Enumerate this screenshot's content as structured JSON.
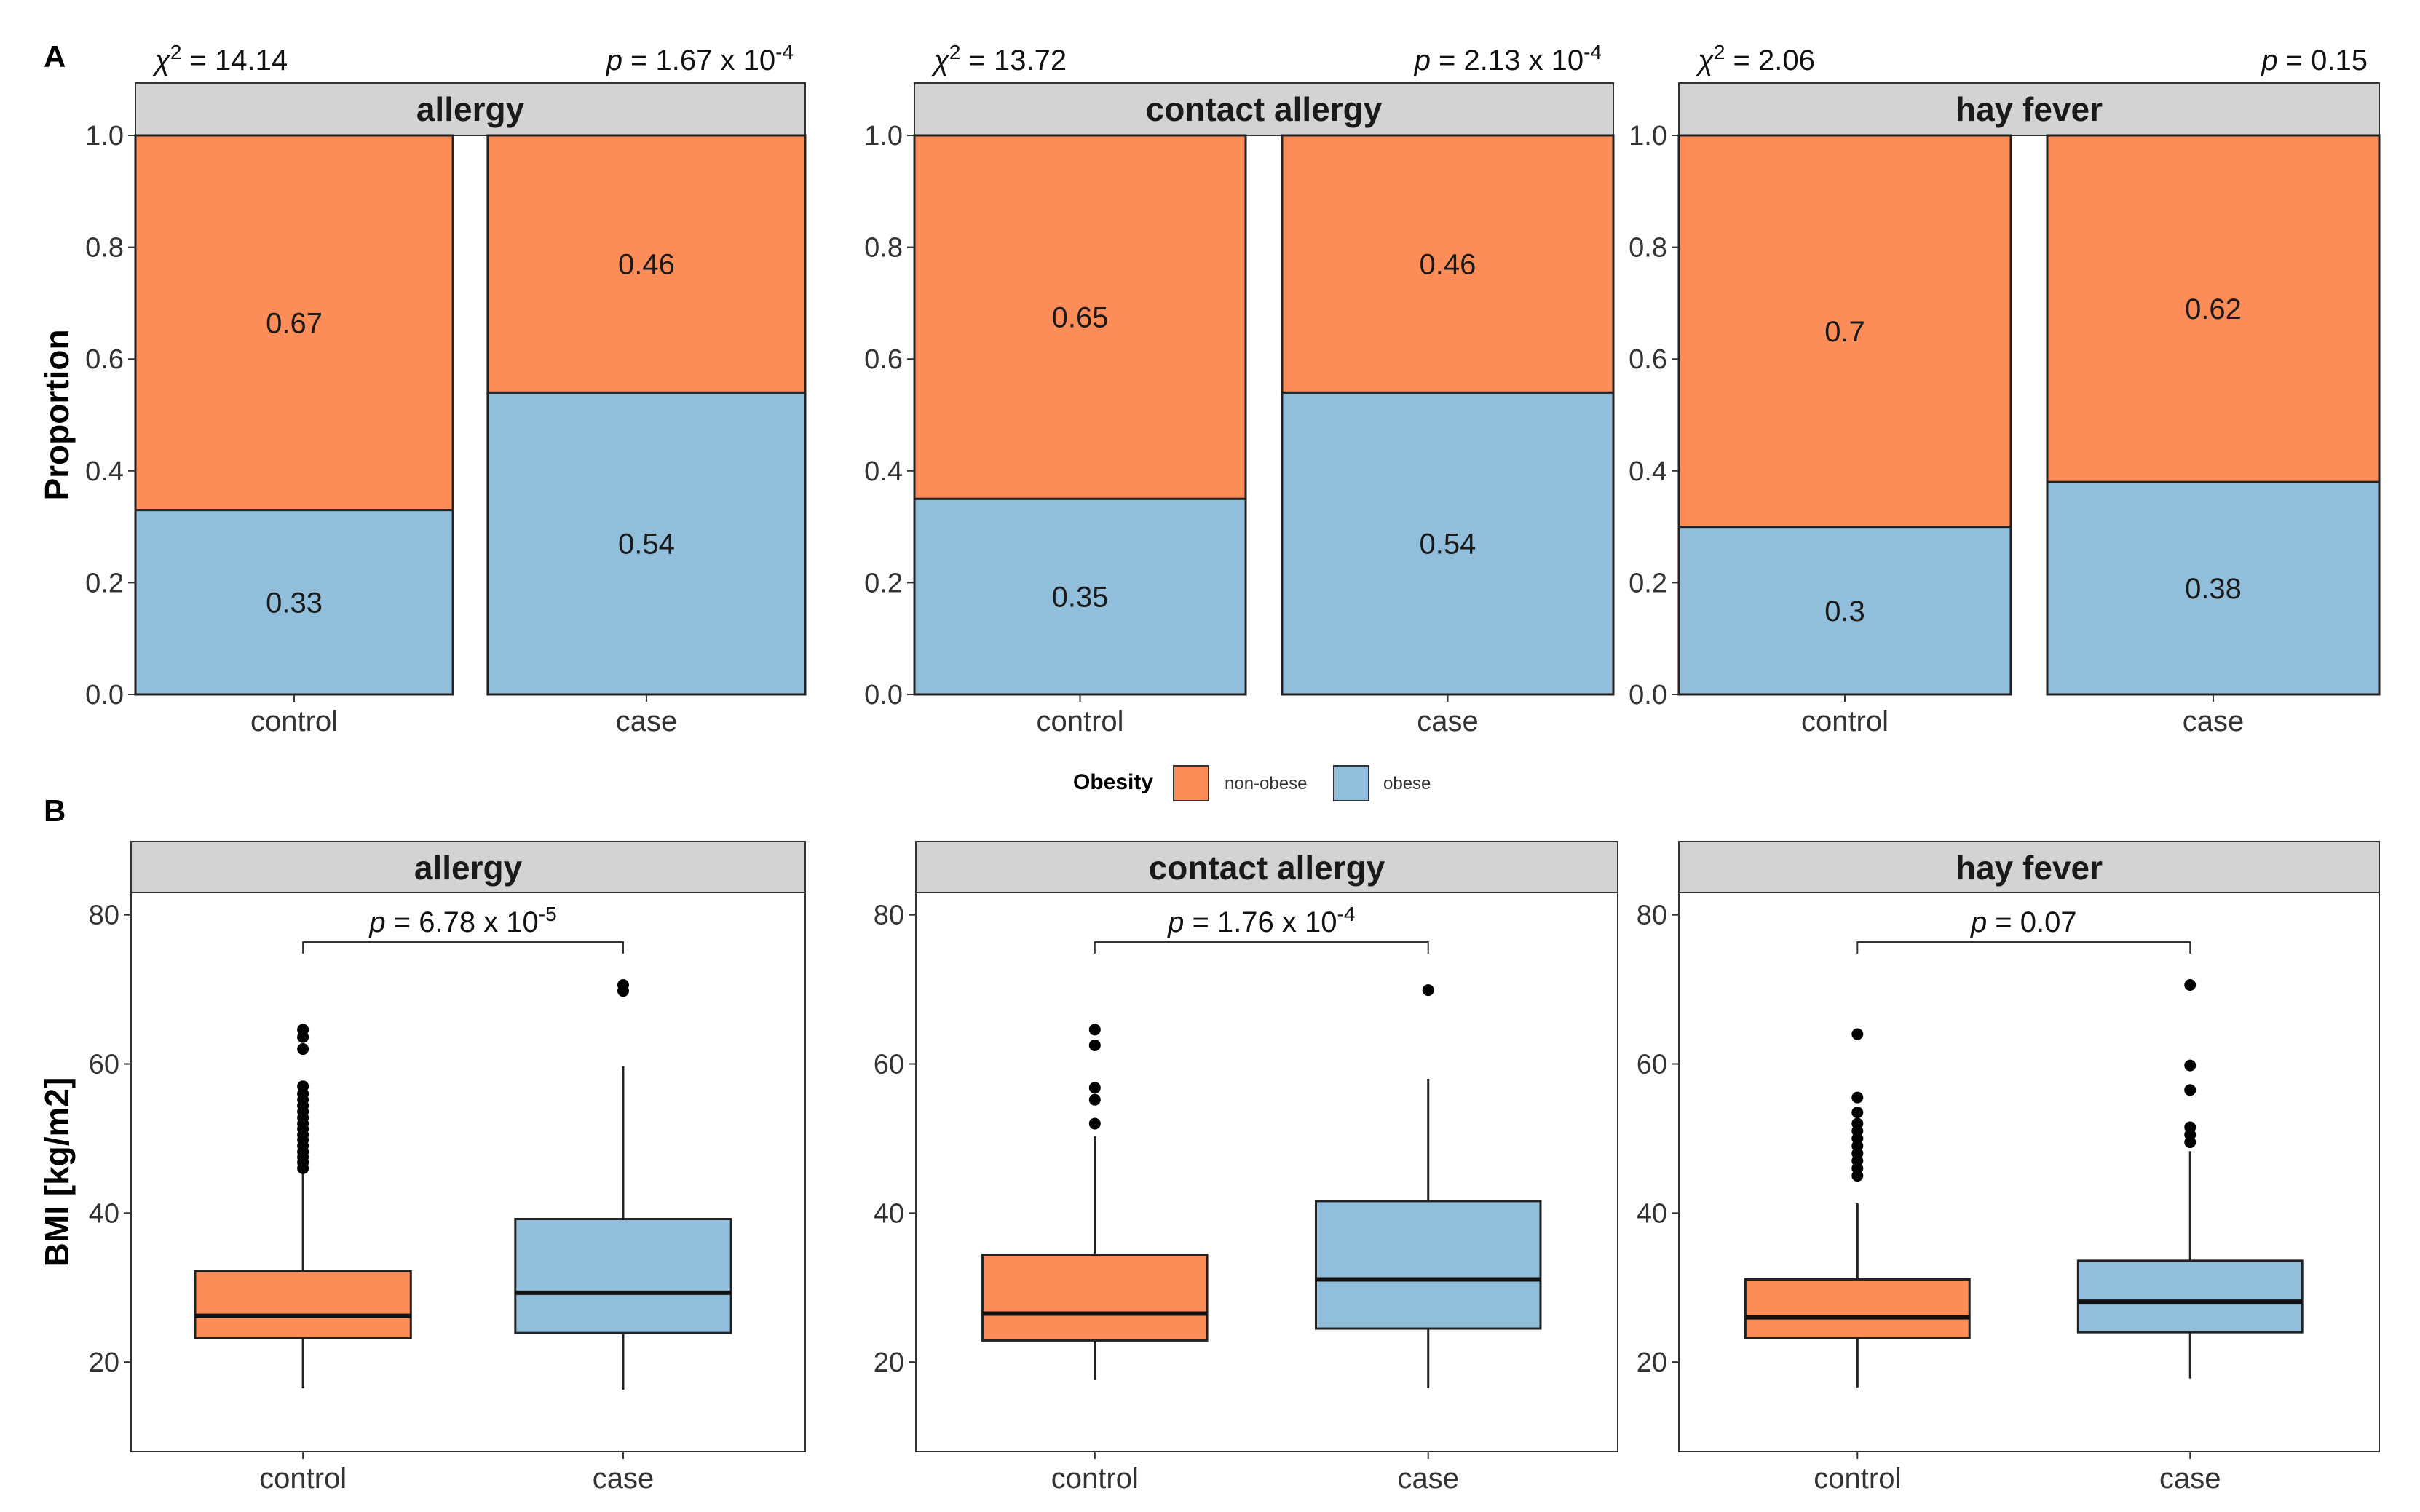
{
  "panel_labels": [
    "A",
    "B"
  ],
  "legend": {
    "title": "Obesity",
    "items": [
      {
        "label": "non-obese",
        "color": "#FC8D59"
      },
      {
        "label": "obese",
        "color": "#91BFDB"
      }
    ]
  },
  "colors": {
    "non_obese": "#FC8D59",
    "obese": "#91BFDB",
    "strip": "#D3D3D3",
    "outlier": "#000000"
  },
  "chart_data": [
    {
      "type": "bar",
      "subtype": "stacked-proportion",
      "panel": "A",
      "ylabel": "Proportion",
      "ylim": [
        0,
        1
      ],
      "yticks": [
        "0.0",
        "0.2",
        "0.4",
        "0.6",
        "0.8",
        "1.0"
      ],
      "categories": [
        "control",
        "case"
      ],
      "facets": [
        {
          "title": "allergy",
          "chi_label": "χ² = 14.14",
          "p_label": "p = 1.67 x 10⁻⁴",
          "series": [
            {
              "name": "obese",
              "values": [
                0.33,
                0.54
              ],
              "labels": [
                "0.33",
                "0.54"
              ]
            },
            {
              "name": "non-obese",
              "values": [
                0.67,
                0.46
              ],
              "labels": [
                "0.67",
                "0.46"
              ]
            }
          ]
        },
        {
          "title": "contact allergy",
          "chi_label": "χ² = 13.72",
          "p_label": "p = 2.13 x 10⁻⁴",
          "series": [
            {
              "name": "obese",
              "values": [
                0.35,
                0.54
              ],
              "labels": [
                "0.35",
                "0.54"
              ]
            },
            {
              "name": "non-obese",
              "values": [
                0.65,
                0.46
              ],
              "labels": [
                "0.65",
                "0.46"
              ]
            }
          ]
        },
        {
          "title": "hay fever",
          "chi_label": "χ² = 2.06",
          "p_label": "p = 0.15",
          "series": [
            {
              "name": "obese",
              "values": [
                0.3,
                0.38
              ],
              "labels": [
                "0.3",
                "0.38"
              ]
            },
            {
              "name": "non-obese",
              "values": [
                0.7,
                0.62
              ],
              "labels": [
                "0.7",
                "0.62"
              ]
            }
          ]
        }
      ]
    },
    {
      "type": "boxplot",
      "panel": "B",
      "ylabel": "BMI [kg/m2]",
      "ylim": [
        8,
        83
      ],
      "yticks": [
        20,
        40,
        60,
        80
      ],
      "categories": [
        "control",
        "case"
      ],
      "facets": [
        {
          "title": "allergy",
          "p_label": "p = 6.78 x 10⁻⁵",
          "boxes": [
            {
              "category": "control",
              "min": 16.5,
              "q1": 23.2,
              "median": 26.2,
              "q3": 32.2,
              "max": 45.5,
              "outliers": [
                46,
                46.8,
                47.5,
                48.2,
                49,
                49.8,
                50.5,
                51.3,
                52,
                52.8,
                53.6,
                54.4,
                55.2,
                56,
                57,
                62,
                63.6,
                64.6
              ]
            },
            {
              "category": "case",
              "min": 16.3,
              "q1": 23.9,
              "median": 29.3,
              "q3": 39.2,
              "max": 59.7,
              "outliers": [
                69.8,
                70.6
              ]
            }
          ]
        },
        {
          "title": "contact allergy",
          "p_label": "p = 1.76 x 10⁻⁴",
          "boxes": [
            {
              "category": "control",
              "min": 17.6,
              "q1": 22.9,
              "median": 26.5,
              "q3": 34.4,
              "max": 50.3,
              "outliers": [
                52,
                55.2,
                56.8,
                62.5,
                64.6
              ]
            },
            {
              "category": "case",
              "min": 16.5,
              "q1": 24.5,
              "median": 31.1,
              "q3": 41.6,
              "max": 58.0,
              "outliers": [
                69.9
              ]
            }
          ]
        },
        {
          "title": "hay fever",
          "p_label": "p = 0.07",
          "boxes": [
            {
              "category": "control",
              "min": 16.6,
              "q1": 23.2,
              "median": 26.0,
              "q3": 31.1,
              "max": 41.3,
              "outliers": [
                45,
                46,
                47,
                48,
                49,
                50,
                51,
                52,
                53.5,
                55.5,
                64
              ]
            },
            {
              "category": "case",
              "min": 17.8,
              "q1": 24.0,
              "median": 28.1,
              "q3": 33.6,
              "max": 48.3,
              "outliers": [
                49.5,
                50.5,
                51.5,
                56.5,
                59.8,
                70.6
              ]
            }
          ]
        }
      ]
    }
  ]
}
